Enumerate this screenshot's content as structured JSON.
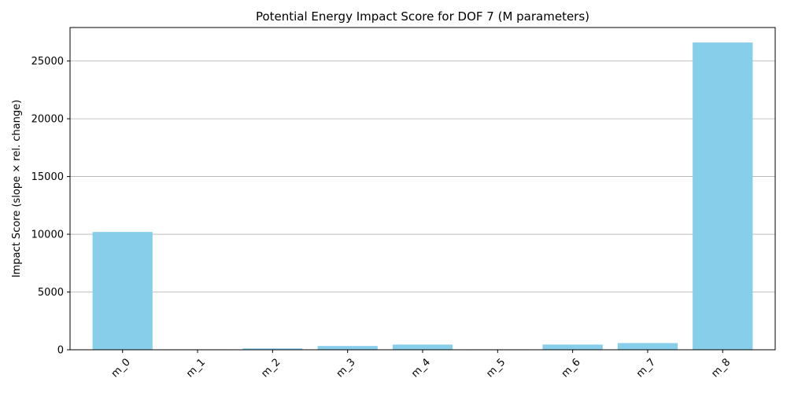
{
  "chart_data": {
    "type": "bar",
    "title": "Potential Energy Impact Score for DOF 7 (M parameters)",
    "xlabel": "",
    "ylabel": "Impact Score (slope × rel. change)",
    "categories": [
      "m_0",
      "m_1",
      "m_2",
      "m_3",
      "m_4",
      "m_5",
      "m_6",
      "m_7",
      "m_8"
    ],
    "values": [
      10200,
      40,
      120,
      330,
      450,
      40,
      450,
      580,
      26600
    ],
    "ylim": [
      0,
      27900
    ],
    "yticks": [
      0,
      5000,
      10000,
      15000,
      20000,
      25000
    ],
    "ytick_labels": [
      "0",
      "5000",
      "10000",
      "15000",
      "20000",
      "25000"
    ],
    "grid": "y",
    "bar_color": "#87ceeb"
  }
}
